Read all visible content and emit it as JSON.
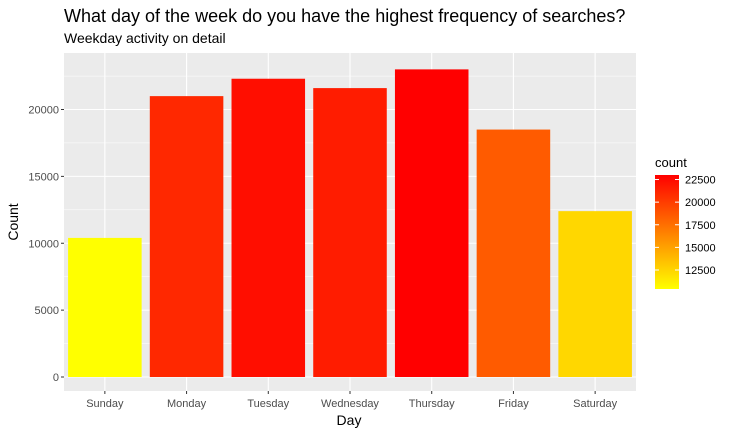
{
  "chart_data": {
    "type": "bar",
    "title": "What day of the week do you have the highest frequency of searches?",
    "subtitle": "Weekday activity on detail",
    "xlabel": "Day",
    "ylabel": "Count",
    "categories": [
      "Sunday",
      "Monday",
      "Tuesday",
      "Wednesday",
      "Thursday",
      "Friday",
      "Saturday"
    ],
    "values": [
      10400,
      21000,
      22300,
      21600,
      23000,
      18500,
      12400
    ],
    "ylim": [
      0,
      23700
    ],
    "yticks": [
      0,
      5000,
      10000,
      15000,
      20000
    ],
    "grid": true,
    "legend": {
      "title": "count",
      "placement": "right",
      "range": [
        10400,
        23000
      ],
      "ticks": [
        12500,
        15000,
        17500,
        20000,
        22500
      ],
      "low_color": "#FFFF00",
      "high_color": "#FF0000"
    }
  }
}
